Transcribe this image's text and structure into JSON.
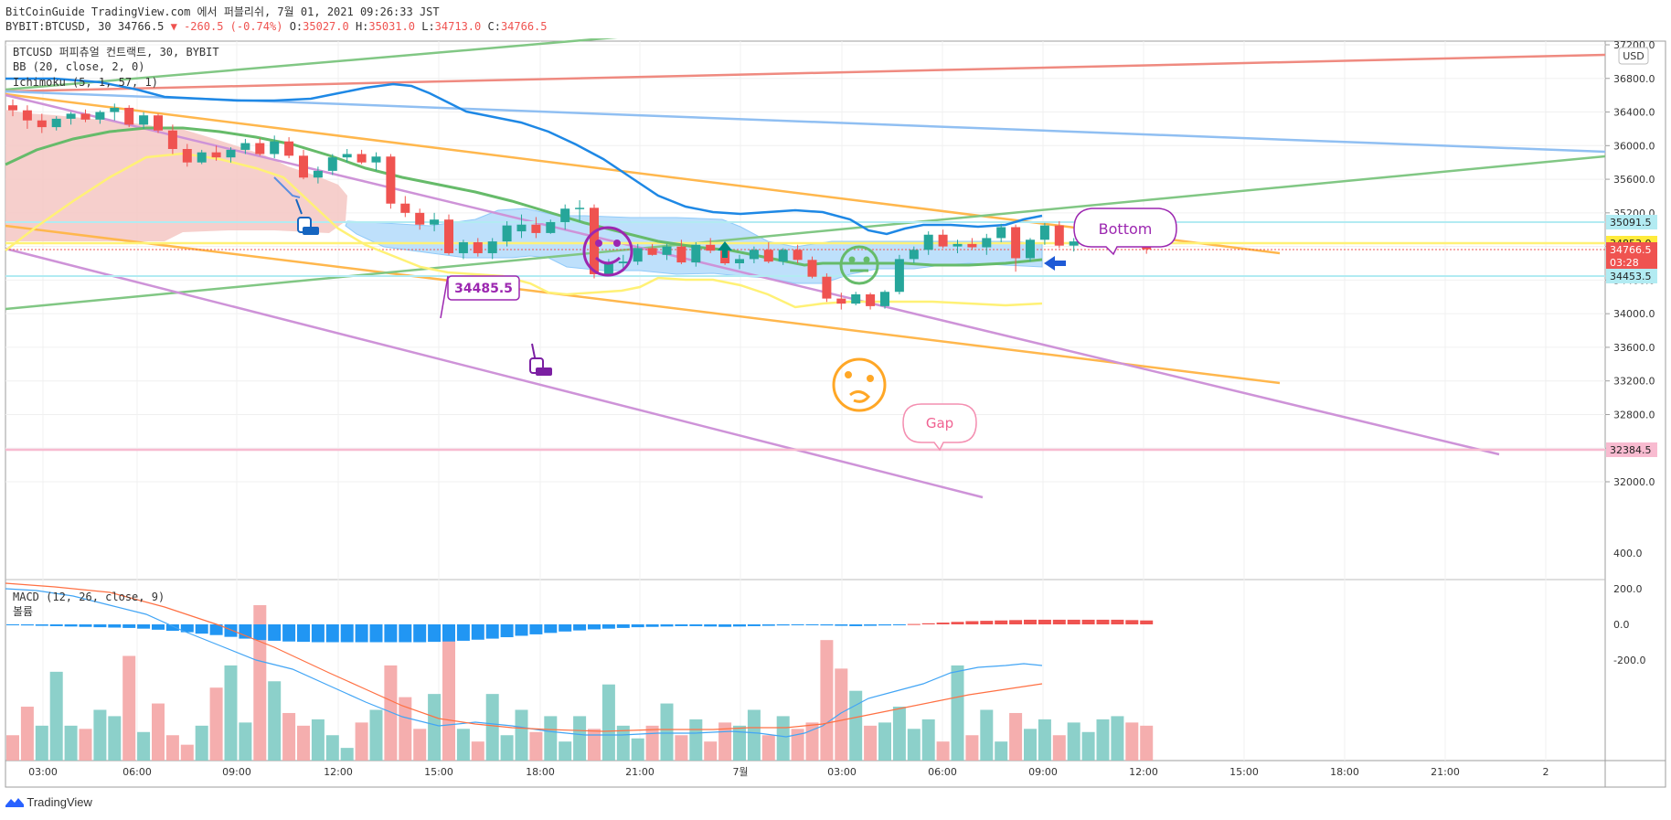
{
  "header": {
    "line1": "BitCoinGuide TradingView.com 에서 퍼블리쉬, 7월 01, 2021 09:26:33 JST",
    "symbol": "BYBIT:BTCUSD, 30 34766.5",
    "change": "▼ -260.5 (-0.74%)",
    "o_label": "O:",
    "o_val": "35027.0",
    "h_label": "H:",
    "h_val": "35031.0",
    "l_label": "L:",
    "l_val": "34713.0",
    "c_label": "C:",
    "c_val": "34766.5"
  },
  "legend": {
    "title": "BTCUSD 퍼피츄얼 컨트랙트, 30, BYBIT",
    "bb": "BB (20, close, 2, 0)",
    "ichimoku": "Ichimoku (5, 1, 57, 1)",
    "macd": "MACD (12, 26, close, 9)",
    "volume": "볼륨"
  },
  "currency_badge": "USD",
  "brand": "TradingView",
  "chart_data": {
    "type": "candlestick",
    "price_axis_ticks": [
      "37200.0",
      "36800.0",
      "36400.0",
      "36000.0",
      "35600.0",
      "35200.0",
      "34800.0",
      "34400.0",
      "34000.0",
      "33600.0",
      "33200.0",
      "32800.0",
      "32400.0",
      "32000.0"
    ],
    "price_labels": [
      {
        "text": "35091.5",
        "kind": "line",
        "color": "#b2ebf2"
      },
      {
        "text": "34853.0",
        "kind": "line",
        "color": "#ffeb3b"
      },
      {
        "text": "34766.5",
        "kind": "last",
        "color": "#ef5350",
        "countdown": "03:28"
      },
      {
        "text": "34453.5",
        "kind": "line",
        "color": "#b2ebf2"
      },
      {
        "text": "32384.5",
        "kind": "line",
        "color": "#f8bbd0"
      }
    ],
    "time_axis_labels": [
      "03:00",
      "06:00",
      "09:00",
      "12:00",
      "15:00",
      "18:00",
      "21:00",
      "7월",
      "03:00",
      "06:00",
      "09:00",
      "12:00",
      "15:00",
      "18:00",
      "21:00",
      "2"
    ],
    "macd_axis_ticks": [
      "400.0",
      "200.0",
      "0.0",
      "-200.0"
    ],
    "annotations": [
      "34485.5",
      "Bottom",
      "Gap"
    ],
    "candles": [
      [
        36480,
        36550,
        36350,
        36420
      ],
      [
        36420,
        36480,
        36200,
        36300
      ],
      [
        36300,
        36380,
        36150,
        36220
      ],
      [
        36220,
        36350,
        36180,
        36320
      ],
      [
        36320,
        36400,
        36250,
        36380
      ],
      [
        36380,
        36430,
        36280,
        36310
      ],
      [
        36310,
        36420,
        36260,
        36400
      ],
      [
        36400,
        36500,
        36300,
        36450
      ],
      [
        36450,
        36480,
        36220,
        36250
      ],
      [
        36250,
        36400,
        36200,
        36360
      ],
      [
        36360,
        36380,
        36150,
        36180
      ],
      [
        36180,
        36250,
        35900,
        35960
      ],
      [
        35960,
        36020,
        35750,
        35800
      ],
      [
        35800,
        35950,
        35780,
        35920
      ],
      [
        35920,
        36000,
        35820,
        35860
      ],
      [
        35860,
        35980,
        35800,
        35950
      ],
      [
        35950,
        36080,
        35900,
        36030
      ],
      [
        36030,
        36090,
        35880,
        35900
      ],
      [
        35900,
        36120,
        35850,
        36050
      ],
      [
        36050,
        36100,
        35850,
        35880
      ],
      [
        35880,
        35950,
        35600,
        35620
      ],
      [
        35620,
        35750,
        35550,
        35700
      ],
      [
        35700,
        35900,
        35650,
        35860
      ],
      [
        35860,
        35960,
        35800,
        35900
      ],
      [
        35900,
        35950,
        35780,
        35800
      ],
      [
        35800,
        35920,
        35700,
        35870
      ],
      [
        35870,
        35900,
        35250,
        35310
      ],
      [
        35310,
        35400,
        35150,
        35200
      ],
      [
        35200,
        35250,
        35000,
        35060
      ],
      [
        35060,
        35200,
        34980,
        35120
      ],
      [
        35120,
        35180,
        34700,
        34720
      ],
      [
        34720,
        34880,
        34650,
        34850
      ],
      [
        34850,
        34900,
        34680,
        34720
      ],
      [
        34720,
        34900,
        34650,
        34860
      ],
      [
        34860,
        35100,
        34800,
        35050
      ],
      [
        34980,
        35180,
        34900,
        35060
      ],
      [
        35060,
        35150,
        34900,
        34960
      ],
      [
        34960,
        35120,
        34950,
        35090
      ],
      [
        35090,
        35300,
        35000,
        35250
      ],
      [
        35250,
        35350,
        35100,
        35260
      ],
      [
        35260,
        35300,
        34420,
        34470
      ],
      [
        34470,
        34650,
        34450,
        34600
      ],
      [
        34600,
        34700,
        34500,
        34620
      ],
      [
        34620,
        34830,
        34580,
        34780
      ],
      [
        34780,
        34830,
        34690,
        34700
      ],
      [
        34700,
        34830,
        34640,
        34800
      ],
      [
        34800,
        34880,
        34590,
        34610
      ],
      [
        34610,
        34850,
        34560,
        34820
      ],
      [
        34820,
        34900,
        34720,
        34750
      ],
      [
        34750,
        34800,
        34580,
        34600
      ],
      [
        34600,
        34700,
        34530,
        34650
      ],
      [
        34650,
        34800,
        34600,
        34760
      ],
      [
        34760,
        34850,
        34600,
        34620
      ],
      [
        34620,
        34780,
        34580,
        34760
      ],
      [
        34760,
        34820,
        34600,
        34640
      ],
      [
        34640,
        34680,
        34420,
        34440
      ],
      [
        34440,
        34480,
        34140,
        34180
      ],
      [
        34180,
        34250,
        34050,
        34120
      ],
      [
        34120,
        34260,
        34100,
        34230
      ],
      [
        34230,
        34250,
        34050,
        34090
      ],
      [
        34090,
        34280,
        34060,
        34260
      ],
      [
        34260,
        34700,
        34230,
        34650
      ],
      [
        34650,
        34800,
        34600,
        34760
      ],
      [
        34760,
        34980,
        34700,
        34940
      ],
      [
        34940,
        35000,
        34780,
        34800
      ],
      [
        34800,
        34880,
        34720,
        34830
      ],
      [
        34830,
        34900,
        34760,
        34790
      ],
      [
        34790,
        34950,
        34700,
        34900
      ],
      [
        34900,
        35070,
        34850,
        35030
      ],
      [
        35030,
        35060,
        34500,
        34660
      ],
      [
        34660,
        34900,
        34620,
        34880
      ],
      [
        34880,
        35080,
        34820,
        35050
      ],
      [
        35050,
        35100,
        34780,
        34810
      ],
      [
        34810,
        34900,
        34740,
        34860
      ],
      [
        34860,
        34950,
        34820,
        34900
      ],
      [
        34900,
        35020,
        34850,
        34980
      ],
      [
        34980,
        35100,
        34900,
        35060
      ],
      [
        35060,
        35130,
        34990,
        35027
      ],
      [
        35027,
        35031,
        34713,
        34766.5
      ]
    ],
    "volume": [
      80,
      170,
      110,
      280,
      110,
      100,
      160,
      140,
      330,
      90,
      180,
      80,
      50,
      110,
      230,
      300,
      120,
      490,
      250,
      150,
      110,
      130,
      80,
      40,
      120,
      160,
      300,
      200,
      100,
      210,
      400,
      100,
      60,
      210,
      80,
      160,
      90,
      140,
      60,
      140,
      100,
      240,
      110,
      70,
      110,
      180,
      80,
      130,
      60,
      120,
      110,
      160,
      80,
      140,
      100,
      120,
      380,
      290,
      220,
      110,
      120,
      170,
      100,
      130,
      60,
      300,
      80,
      160,
      60,
      150,
      100,
      130,
      80,
      120,
      90,
      130,
      140,
      120,
      110
    ],
    "volume_up": [
      false,
      false,
      true,
      true,
      true,
      false,
      true,
      true,
      false,
      true,
      false,
      false,
      false,
      true,
      false,
      true,
      true,
      false,
      true,
      false,
      false,
      true,
      true,
      true,
      false,
      true,
      false,
      false,
      false,
      true,
      false,
      true,
      false,
      true,
      true,
      true,
      false,
      true,
      true,
      true,
      false,
      true,
      true,
      true,
      false,
      true,
      false,
      true,
      false,
      false,
      true,
      true,
      false,
      true,
      false,
      false,
      false,
      false,
      true,
      false,
      true,
      true,
      true,
      true,
      false,
      true,
      false,
      true,
      true,
      false,
      true,
      true,
      false,
      true,
      true,
      true,
      true,
      false,
      false
    ],
    "macd_hist": [
      -5,
      -6,
      -8,
      -10,
      -12,
      -14,
      -16,
      -18,
      -20,
      -24,
      -30,
      -36,
      -44,
      -52,
      -60,
      -70,
      -80,
      -88,
      -92,
      -96,
      -98,
      -100,
      -100,
      -100,
      -100,
      -100,
      -100,
      -100,
      -100,
      -98,
      -96,
      -92,
      -86,
      -80,
      -72,
      -64,
      -56,
      -48,
      -40,
      -34,
      -28,
      -24,
      -20,
      -16,
      -14,
      -12,
      -10,
      -10,
      -12,
      -14,
      -12,
      -10,
      -8,
      -6,
      -4,
      -4,
      -6,
      -8,
      -10,
      -8,
      -6,
      -2,
      2,
      6,
      10,
      14,
      18,
      20,
      22,
      24,
      26,
      26,
      26,
      26,
      26,
      26,
      26,
      24,
      22
    ],
    "macd_range": [
      -380,
      400
    ]
  }
}
